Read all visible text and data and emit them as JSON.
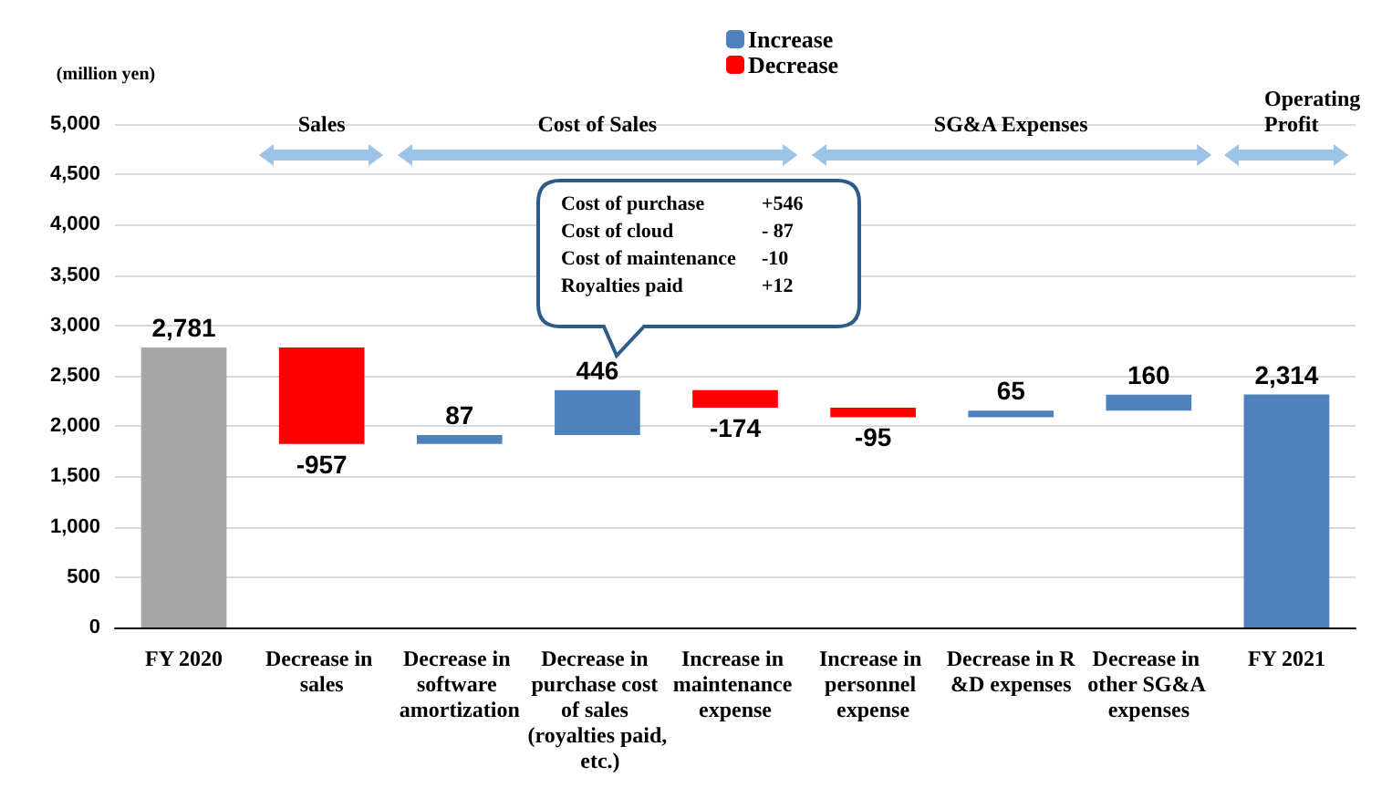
{
  "chart_data": {
    "type": "bar",
    "ylabel": "(million yen)",
    "categories": [
      "FY 2020",
      "Decrease in sales",
      "Decrease in software amortization",
      "Decrease in purchase cost of sales (royalties paid, etc.)",
      "Increase in maintenance expense",
      "Increase in personnel expense",
      "Decrease in R&D expenses",
      "Decrease in other SG&A expenses",
      "FY 2021"
    ],
    "series": [
      {
        "color": "#a6a6a6",
        "values": [
          2781,
          null,
          null,
          null,
          null,
          null,
          null,
          null,
          null
        ],
        "base": [
          0,
          null,
          null,
          null,
          null,
          null,
          null,
          null,
          null
        ],
        "value_labels": [
          "2,781",
          null,
          null,
          null,
          null,
          null,
          null,
          null,
          null
        ]
      },
      {
        "name": "Increase",
        "color": "#4f81bd",
        "values": [
          null,
          null,
          87,
          446,
          null,
          null,
          65,
          160,
          2314
        ],
        "base": [
          null,
          null,
          1824,
          1911,
          null,
          null,
          2088,
          2153,
          0
        ],
        "value_labels": [
          null,
          null,
          "87",
          "446",
          null,
          null,
          "65",
          "160",
          "2,314"
        ]
      },
      {
        "name": "Decrease",
        "color": "#ff0000",
        "values": [
          null,
          -957,
          null,
          null,
          -174,
          -95,
          null,
          null,
          null
        ],
        "base": [
          null,
          2781,
          null,
          null,
          2357,
          2183,
          null,
          null,
          null
        ],
        "value_labels": [
          null,
          "-957",
          null,
          null,
          "-174",
          "-95",
          null,
          null,
          null
        ]
      }
    ],
    "ylim": [
      0,
      5000
    ],
    "yticks": [
      0,
      500,
      {
        "value": 1000,
        "label": "1,000"
      },
      {
        "value": 1500,
        "label": "1,500"
      },
      {
        "value": 2000,
        "label": "2,000"
      },
      {
        "value": 2500,
        "label": "2,500"
      },
      {
        "value": 3000,
        "label": "3,000"
      },
      {
        "value": 3500,
        "label": "3,500"
      },
      {
        "value": 4000,
        "label": "4,000"
      },
      {
        "value": 4500,
        "label": "4,500"
      },
      {
        "value": 5000,
        "label": "5,000"
      }
    ],
    "grid": "y",
    "legend": "top",
    "annotations": [
      "Sales",
      "Cost of Sales",
      "SG&A Expenses",
      "Operating Profit",
      "Cost of purchase +546",
      "Cost of cloud - 87",
      "Cost of maintenance -10",
      "Royalties paid +12"
    ]
  }
}
